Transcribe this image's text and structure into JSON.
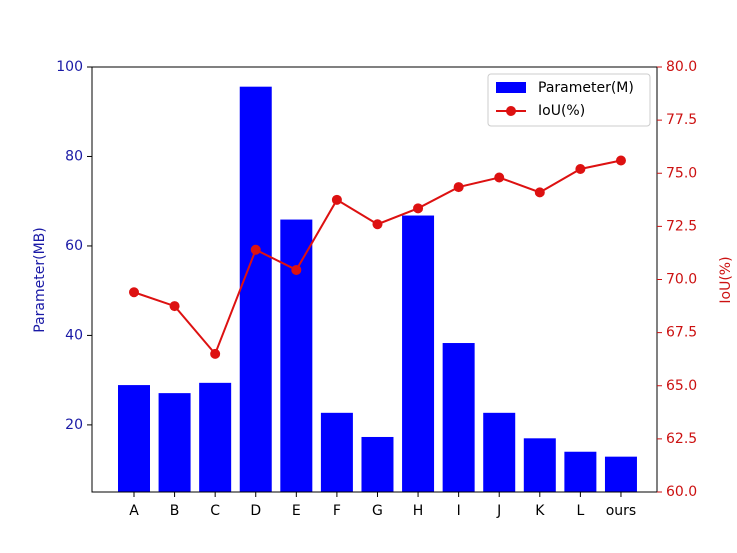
{
  "chart_data": {
    "type": "bar-line",
    "categories": [
      "A",
      "B",
      "C",
      "D",
      "E",
      "F",
      "G",
      "H",
      "I",
      "J",
      "K",
      "L",
      "ours"
    ],
    "y_label": "Parameter(MB)",
    "y2_label": "IoU(%)",
    "ylim": [
      5,
      100
    ],
    "yticks": [
      20,
      40,
      60,
      80,
      100
    ],
    "y2lim": [
      60,
      80
    ],
    "y2ticks": [
      {
        "value": 60,
        "label": "60.0"
      },
      {
        "value": 62.5,
        "label": "62.5"
      },
      {
        "value": 65,
        "label": "65.0"
      },
      {
        "value": 67.5,
        "label": "67.5"
      },
      {
        "value": 70,
        "label": "70.0"
      },
      {
        "value": 72.5,
        "label": "72.5"
      },
      {
        "value": 75,
        "label": "75.0"
      },
      {
        "value": 77.5,
        "label": "77.5"
      },
      {
        "value": 80,
        "label": "80.0"
      }
    ],
    "legend": "upper right",
    "series": [
      {
        "name": "Parameter(M)",
        "type": "bar",
        "color": "#0000ff",
        "values": [
          28.9,
          27.1,
          29.4,
          95.6,
          65.9,
          22.7,
          17.3,
          66.8,
          38.3,
          22.7,
          17.0,
          14.0,
          12.9
        ]
      },
      {
        "name": "IoU(%)",
        "type": "line",
        "axis": "y2",
        "color": "#dd1111",
        "values": [
          69.4,
          68.75,
          66.5,
          71.4,
          70.45,
          73.75,
          72.6,
          73.35,
          74.35,
          74.8,
          74.1,
          75.2,
          75.6
        ]
      }
    ]
  }
}
